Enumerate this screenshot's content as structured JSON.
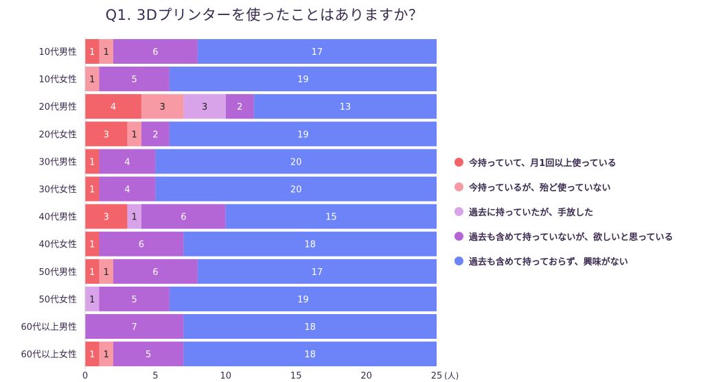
{
  "chart_data": {
    "type": "bar",
    "orientation": "horizontal",
    "stacked": true,
    "title": "Q1. 3Dプリンターを使ったことはありますか？",
    "categories": [
      "10代男性",
      "10代女性",
      "20代男性",
      "20代女性",
      "30代男性",
      "30代女性",
      "40代男性",
      "40代女性",
      "50代男性",
      "50代女性",
      "60代以上男性",
      "60代以上女性"
    ],
    "series": [
      {
        "name": "今持っていて、月1回以上使っている",
        "color": "#f2646a",
        "values": [
          1,
          0,
          4,
          3,
          1,
          1,
          3,
          1,
          1,
          0,
          0,
          1
        ]
      },
      {
        "name": "今持っているが、殆ど使っていない",
        "color": "#f79aa3",
        "values": [
          1,
          1,
          3,
          1,
          0,
          0,
          0,
          0,
          1,
          0,
          0,
          1
        ]
      },
      {
        "name": "過去に持っていたが、手放した",
        "color": "#d9a3ea",
        "values": [
          0,
          0,
          3,
          0,
          0,
          0,
          1,
          0,
          0,
          1,
          0,
          0
        ]
      },
      {
        "name": "過去も含めて持っていないが、欲しいと思っている",
        "color": "#b566d6",
        "values": [
          6,
          5,
          2,
          2,
          4,
          4,
          6,
          6,
          6,
          5,
          7,
          5
        ]
      },
      {
        "name": "過去も含めて持っておらず、興味がない",
        "color": "#6c84f7",
        "values": [
          17,
          19,
          13,
          19,
          20,
          20,
          15,
          18,
          17,
          19,
          18,
          18
        ]
      }
    ],
    "xlim": [
      0,
      25
    ],
    "xticks": [
      0,
      5,
      10,
      15,
      20,
      25
    ],
    "x_unit": "(人)",
    "legend_position": "right"
  }
}
